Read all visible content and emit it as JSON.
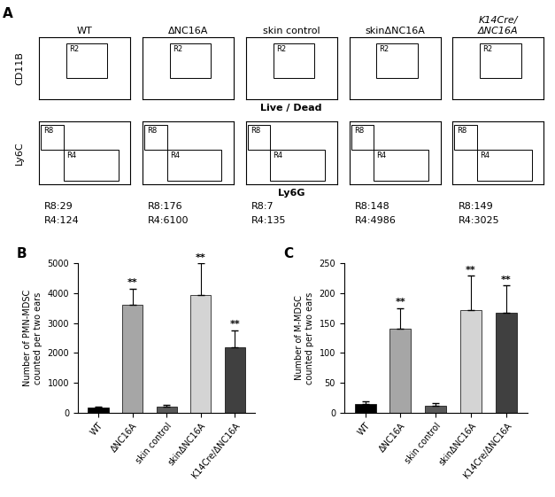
{
  "panel_labels": [
    "A",
    "B",
    "C"
  ],
  "flow_plots": {
    "type": "flow_cytometry",
    "tick_labels": false,
    "samples": [
      "WT",
      "ΔNC16A",
      "skin control",
      "skinΔNC16A",
      "K14Cre/\nΔNC16A"
    ],
    "rows": [
      {
        "ylabel": "CD11B",
        "xlabel": "Live / Dead",
        "gates": [
          "R2"
        ]
      },
      {
        "ylabel": "Ly6C",
        "xlabel": "Ly6G",
        "gates": [
          "R8",
          "R4"
        ]
      }
    ],
    "counts": [
      [
        "R8:29",
        "R4:124"
      ],
      [
        "R8:176",
        "R4:6100"
      ],
      [
        "R8:7",
        "R4:135"
      ],
      [
        "R8:148",
        "R4:4986"
      ],
      [
        "R8:149",
        "R4:3025"
      ]
    ]
  },
  "chart_data": [
    {
      "type": "bar",
      "ylabel": "Number of PMN-MDSC\ncounted per two ears",
      "categories": [
        "WT",
        "ΔNC16A",
        "skin control",
        "skinΔNC16A",
        "K14Cre/ΔNC16A"
      ],
      "values": [
        180,
        3600,
        200,
        3950,
        2200
      ],
      "errors": [
        30,
        550,
        60,
        1050,
        550
      ],
      "annotations": [
        null,
        "**",
        null,
        "**",
        "**"
      ],
      "colors": [
        "#000000",
        "#a6a6a6",
        "#595959",
        "#d4d4d4",
        "#404040"
      ],
      "ylim": [
        0,
        5000
      ],
      "yticks": [
        0,
        1000,
        2000,
        3000,
        4000,
        5000
      ]
    },
    {
      "type": "bar",
      "ylabel": "Number of M-MDSC\ncounted per two ears",
      "categories": [
        "WT",
        "ΔNC16A",
        "skin control",
        "skinΔNC16A",
        "K14Cre/ΔNC16A"
      ],
      "values": [
        15,
        140,
        12,
        172,
        168
      ],
      "errors": [
        4,
        35,
        4,
        57,
        45
      ],
      "annotations": [
        null,
        "**",
        null,
        "**",
        "**"
      ],
      "colors": [
        "#000000",
        "#a6a6a6",
        "#595959",
        "#d4d4d4",
        "#404040"
      ],
      "ylim": [
        0,
        250
      ],
      "yticks": [
        0,
        50,
        100,
        150,
        200,
        250
      ]
    }
  ]
}
